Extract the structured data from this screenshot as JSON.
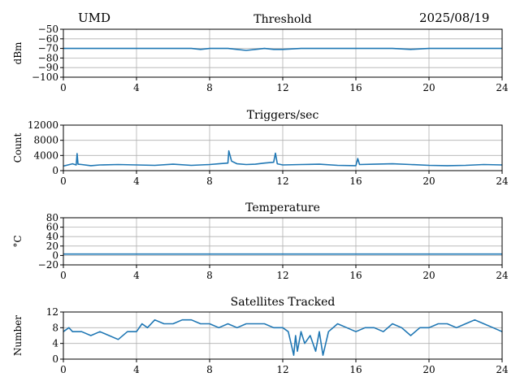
{
  "header": {
    "site": "UMD",
    "date": "2025/08/19"
  },
  "chart_data": [
    {
      "type": "line",
      "title": "Threshold",
      "xlabel": "",
      "ylabel": "dBm",
      "xlim": [
        0,
        24
      ],
      "ylim": [
        -100,
        -50
      ],
      "xticks": [
        0,
        4,
        8,
        12,
        16,
        20,
        24
      ],
      "yticks": [
        -50,
        -60,
        -70,
        -80,
        -90,
        -100
      ],
      "ytick_labels": [
        "−50",
        "−60",
        "−70",
        "−80",
        "−90",
        "−100"
      ],
      "grid": true,
      "color": "#1f77b4",
      "series": [
        {
          "x": [
            0,
            1,
            2,
            3,
            4,
            5,
            6,
            7,
            7.5,
            8,
            8.5,
            9,
            9.5,
            10,
            10.5,
            11,
            11.5,
            12,
            13,
            14,
            15,
            16,
            17,
            18,
            19,
            20,
            21,
            22,
            23,
            24
          ],
          "values": [
            -70,
            -70,
            -70,
            -70,
            -70,
            -70,
            -70,
            -70,
            -71,
            -70,
            -70,
            -70,
            -71,
            -72,
            -71,
            -70,
            -71,
            -71,
            -70,
            -70,
            -70,
            -70,
            -70,
            -70,
            -71,
            -70,
            -70,
            -70,
            -70,
            -70
          ]
        }
      ]
    },
    {
      "type": "line",
      "title": "Triggers/sec",
      "xlabel": "",
      "ylabel": "Count",
      "xlim": [
        0,
        24
      ],
      "ylim": [
        0,
        12000
      ],
      "xticks": [
        0,
        4,
        8,
        12,
        16,
        20,
        24
      ],
      "yticks": [
        0,
        4000,
        8000,
        12000
      ],
      "grid": true,
      "color": "#1f77b4",
      "series": [
        {
          "x": [
            0,
            0.5,
            0.7,
            0.75,
            0.8,
            1,
            1.5,
            2,
            3,
            4,
            5,
            6,
            7,
            8,
            8.5,
            9,
            9.05,
            9.2,
            9.5,
            10,
            10.5,
            11,
            11.5,
            11.6,
            11.7,
            12,
            13,
            14,
            15,
            16,
            16.1,
            16.2,
            17,
            18,
            19,
            20,
            21,
            22,
            23,
            24
          ],
          "values": [
            1200,
            1800,
            1500,
            4500,
            1700,
            1600,
            1300,
            1500,
            1600,
            1500,
            1400,
            1700,
            1400,
            1600,
            1800,
            2000,
            5200,
            2500,
            1800,
            1600,
            1700,
            2000,
            2200,
            4600,
            1800,
            1500,
            1600,
            1700,
            1400,
            1300,
            3200,
            1600,
            1700,
            1800,
            1600,
            1400,
            1300,
            1400,
            1600,
            1500
          ]
        }
      ]
    },
    {
      "type": "line",
      "title": "Temperature",
      "xlabel": "",
      "ylabel": "°C",
      "xlim": [
        0,
        24
      ],
      "ylim": [
        -20,
        80
      ],
      "xticks": [
        0,
        4,
        8,
        12,
        16,
        20,
        24
      ],
      "yticks": [
        80,
        60,
        40,
        20,
        0,
        -20
      ],
      "ytick_labels": [
        "80",
        "60",
        "40",
        "20",
        "0",
        "−20"
      ],
      "grid": true,
      "color": "#1f77b4",
      "series": [
        {
          "x": [
            0,
            24
          ],
          "values": [
            3,
            3
          ]
        }
      ]
    },
    {
      "type": "line",
      "title": "Satellites Tracked",
      "xlabel": "",
      "ylabel": "Number",
      "xlim": [
        0,
        24
      ],
      "ylim": [
        0,
        12
      ],
      "xticks": [
        0,
        4,
        8,
        12,
        16,
        20,
        24
      ],
      "yticks": [
        0,
        4,
        8,
        12
      ],
      "grid": true,
      "color": "#1f77b4",
      "series": [
        {
          "x": [
            0,
            0.3,
            0.5,
            1,
            1.5,
            2,
            2.5,
            3,
            3.5,
            4,
            4.3,
            4.6,
            5,
            5.5,
            6,
            6.5,
            7,
            7.5,
            8,
            8.5,
            9,
            9.5,
            10,
            10.5,
            11,
            11.5,
            12,
            12.3,
            12.5,
            12.6,
            12.7,
            12.8,
            13,
            13.2,
            13.5,
            13.8,
            14,
            14.2,
            14.5,
            15,
            15.5,
            16,
            16.5,
            17,
            17.5,
            18,
            18.5,
            19,
            19.5,
            20,
            20.5,
            21,
            21.5,
            22,
            22.5,
            23,
            23.5,
            24
          ],
          "values": [
            7,
            8,
            7,
            7,
            6,
            7,
            6,
            5,
            7,
            7,
            9,
            8,
            10,
            9,
            9,
            10,
            10,
            9,
            9,
            8,
            9,
            8,
            9,
            9,
            9,
            8,
            8,
            7,
            3,
            1,
            6,
            2,
            7,
            4,
            6,
            2,
            7,
            1,
            7,
            9,
            8,
            7,
            8,
            8,
            7,
            9,
            8,
            6,
            8,
            8,
            9,
            9,
            8,
            9,
            10,
            9,
            8,
            7
          ]
        }
      ]
    }
  ]
}
